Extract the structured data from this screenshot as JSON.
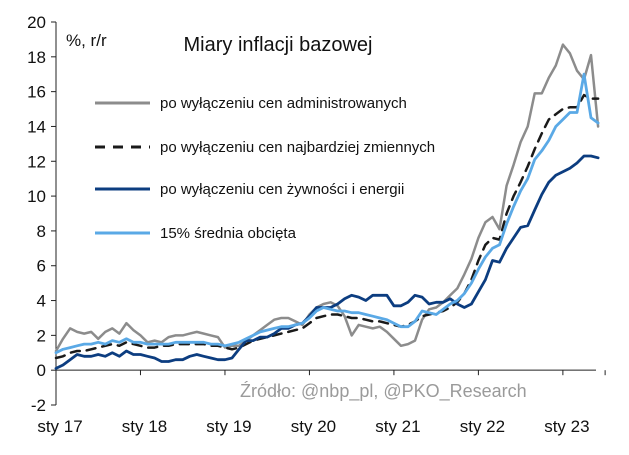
{
  "chart_data": {
    "type": "line",
    "title": "Miary inflacji bazowej",
    "unit_label": "%, r/r",
    "source": "Źródło: @nbp_pl, @PKO_Research",
    "ylim": [
      -2,
      20
    ],
    "y_ticks": [
      "-2",
      "0",
      "2",
      "4",
      "6",
      "8",
      "10",
      "12",
      "14",
      "16",
      "18",
      "20"
    ],
    "x_ticks": [
      "sty 17",
      "sty 18",
      "sty 19",
      "sty 20",
      "sty 21",
      "sty 22",
      "sty 23"
    ],
    "x_start": "2017-01",
    "legend_position": "upper-left",
    "grid": false,
    "series": [
      {
        "name": "po wyłączeniu cen administrowanych",
        "color": "#8c8c8c",
        "style": "solid",
        "values": [
          1.1,
          1.8,
          2.4,
          2.2,
          2.1,
          2.2,
          1.8,
          2.2,
          2.4,
          2.1,
          2.7,
          2.3,
          2.0,
          1.6,
          1.7,
          1.6,
          1.9,
          2.0,
          2.0,
          2.1,
          2.2,
          2.1,
          2.0,
          1.9,
          1.3,
          1.4,
          1.4,
          1.7,
          2.0,
          2.3,
          2.6,
          2.9,
          3.0,
          3.0,
          2.8,
          2.6,
          3.2,
          3.6,
          3.8,
          3.9,
          3.7,
          3.1,
          2.0,
          2.6,
          2.5,
          2.4,
          2.5,
          2.2,
          1.8,
          1.4,
          1.5,
          1.7,
          2.9,
          3.5,
          3.6,
          3.9,
          4.3,
          4.7,
          5.5,
          6.4,
          7.6,
          8.5,
          8.8,
          8.1,
          10.6,
          11.8,
          13.1,
          14.0,
          15.9,
          15.9,
          16.8,
          17.5,
          18.7,
          18.2,
          17.2,
          16.7,
          18.1,
          14.0
        ]
      },
      {
        "name": "po wyłączeniu cen najbardziej zmiennych",
        "color": "#1a1a1a",
        "style": "dashed",
        "values": [
          0.7,
          0.8,
          1.0,
          1.1,
          1.1,
          1.2,
          1.3,
          1.4,
          1.5,
          1.4,
          1.6,
          1.5,
          1.4,
          1.3,
          1.3,
          1.4,
          1.4,
          1.5,
          1.5,
          1.5,
          1.5,
          1.5,
          1.4,
          1.4,
          1.3,
          1.2,
          1.3,
          1.5,
          1.7,
          1.8,
          1.9,
          2.0,
          2.1,
          2.2,
          2.3,
          2.4,
          2.7,
          3.0,
          3.1,
          3.2,
          3.2,
          3.1,
          3.0,
          3.0,
          2.9,
          2.8,
          2.8,
          2.7,
          2.6,
          2.5,
          2.6,
          2.8,
          3.1,
          3.2,
          3.3,
          3.4,
          3.6,
          3.9,
          4.4,
          5.2,
          6.3,
          7.2,
          7.6,
          7.5,
          9.0,
          10.0,
          10.8,
          11.7,
          12.7,
          13.6,
          14.4,
          14.7,
          15.0,
          15.1,
          15.1,
          15.8,
          15.6,
          15.6
        ]
      },
      {
        "name": "po wyłączeniu cen żywności i energii",
        "color": "#0c3d80",
        "style": "solid",
        "values": [
          0.1,
          0.3,
          0.6,
          0.9,
          0.8,
          0.8,
          0.9,
          0.8,
          1.0,
          0.8,
          1.1,
          0.9,
          0.9,
          0.8,
          0.7,
          0.5,
          0.5,
          0.6,
          0.6,
          0.8,
          0.9,
          0.8,
          0.7,
          0.6,
          0.6,
          0.7,
          1.2,
          1.7,
          1.7,
          1.9,
          1.9,
          2.1,
          2.4,
          2.4,
          2.6,
          2.7,
          3.1,
          3.6,
          3.6,
          3.6,
          3.8,
          4.1,
          4.3,
          4.2,
          4.0,
          4.3,
          4.3,
          4.3,
          3.7,
          3.7,
          3.9,
          4.3,
          4.2,
          3.8,
          3.9,
          3.9,
          4.1,
          3.8,
          3.6,
          3.8,
          4.5,
          5.2,
          6.3,
          6.2,
          7.0,
          7.6,
          8.2,
          8.3,
          9.2,
          10.1,
          10.8,
          11.2,
          11.4,
          11.6,
          11.9,
          12.3,
          12.3,
          12.2
        ]
      },
      {
        "name": "15% średnia obcięta",
        "color": "#5aa9e6",
        "style": "solid",
        "values": [
          1.0,
          1.2,
          1.3,
          1.4,
          1.5,
          1.5,
          1.6,
          1.5,
          1.7,
          1.6,
          1.8,
          1.6,
          1.6,
          1.5,
          1.5,
          1.5,
          1.5,
          1.6,
          1.6,
          1.6,
          1.6,
          1.6,
          1.5,
          1.5,
          1.4,
          1.5,
          1.6,
          1.8,
          2.0,
          2.2,
          2.3,
          2.4,
          2.5,
          2.5,
          2.6,
          2.7,
          3.0,
          3.4,
          3.6,
          3.5,
          3.4,
          3.4,
          3.3,
          3.3,
          3.2,
          3.1,
          3.0,
          2.9,
          2.7,
          2.5,
          2.5,
          2.8,
          3.4,
          3.3,
          3.2,
          3.5,
          3.8,
          4.0,
          4.4,
          5.0,
          5.8,
          6.5,
          7.0,
          7.2,
          8.4,
          9.4,
          10.3,
          11.0,
          12.1,
          12.6,
          13.2,
          14.0,
          14.4,
          14.8,
          14.8,
          17.0,
          14.5,
          14.2
        ]
      }
    ]
  }
}
